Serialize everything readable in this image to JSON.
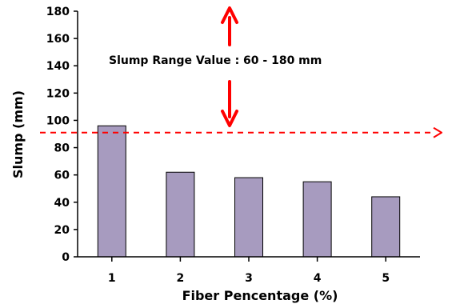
{
  "chart_data": {
    "type": "bar",
    "categories": [
      "1",
      "2",
      "3",
      "4",
      "5"
    ],
    "values": [
      96,
      62,
      58,
      55,
      44
    ],
    "title": "",
    "xlabel": "Fiber Pencentage (%)",
    "ylabel": "Slump (mm)",
    "ylim": [
      0,
      180
    ],
    "yticks": [
      "0",
      "20",
      "40",
      "60",
      "80",
      "100",
      "120",
      "140",
      "160",
      "180"
    ],
    "grid": false,
    "legend": "none",
    "bar_color": "#a79bbf",
    "bar_edge_color": "#000000",
    "reference_line": {
      "y": 91,
      "color": "#ff0000",
      "style": "dashed"
    },
    "annotation": {
      "text": "Slump Range Value : 60 - 180 mm",
      "arrow_color": "#ff0000"
    }
  }
}
